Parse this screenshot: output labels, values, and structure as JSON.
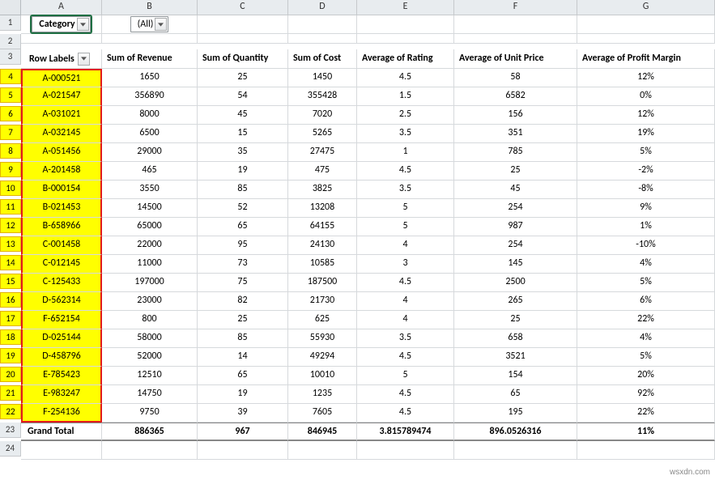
{
  "columns": [
    "A",
    "B",
    "C",
    "D",
    "E",
    "F",
    "G"
  ],
  "filter": {
    "label": "Category",
    "value": "(All)"
  },
  "headers": {
    "row_labels": "Row Labels",
    "cols": [
      "Sum of Revenue",
      "Sum of Quantity",
      "Sum of Cost",
      "Average of Rating",
      "Average of Unit Price",
      "Average of Profit Margin"
    ]
  },
  "rows": [
    {
      "n": "4",
      "id": "A-000521",
      "rev": "1650",
      "qty": "25",
      "cost": "1450",
      "rat": "4.5",
      "unit": "58",
      "pm": "12%"
    },
    {
      "n": "5",
      "id": "A-021547",
      "rev": "356890",
      "qty": "54",
      "cost": "355428",
      "rat": "1.5",
      "unit": "6582",
      "pm": "0%"
    },
    {
      "n": "6",
      "id": "A-031021",
      "rev": "8000",
      "qty": "45",
      "cost": "7020",
      "rat": "2.5",
      "unit": "156",
      "pm": "12%"
    },
    {
      "n": "7",
      "id": "A-032145",
      "rev": "6500",
      "qty": "15",
      "cost": "5265",
      "rat": "3.5",
      "unit": "351",
      "pm": "19%"
    },
    {
      "n": "8",
      "id": "A-051456",
      "rev": "29000",
      "qty": "35",
      "cost": "27475",
      "rat": "1",
      "unit": "785",
      "pm": "5%"
    },
    {
      "n": "9",
      "id": "A-201458",
      "rev": "465",
      "qty": "19",
      "cost": "475",
      "rat": "4.5",
      "unit": "25",
      "pm": "-2%"
    },
    {
      "n": "10",
      "id": "B-000154",
      "rev": "3550",
      "qty": "85",
      "cost": "3825",
      "rat": "3.5",
      "unit": "45",
      "pm": "-8%"
    },
    {
      "n": "11",
      "id": "B-021453",
      "rev": "14500",
      "qty": "52",
      "cost": "13208",
      "rat": "5",
      "unit": "254",
      "pm": "9%"
    },
    {
      "n": "12",
      "id": "B-658966",
      "rev": "65000",
      "qty": "65",
      "cost": "64155",
      "rat": "5",
      "unit": "987",
      "pm": "1%"
    },
    {
      "n": "13",
      "id": "C-001458",
      "rev": "22000",
      "qty": "95",
      "cost": "24130",
      "rat": "4",
      "unit": "254",
      "pm": "-10%"
    },
    {
      "n": "14",
      "id": "C-012145",
      "rev": "11000",
      "qty": "73",
      "cost": "10585",
      "rat": "3",
      "unit": "145",
      "pm": "4%"
    },
    {
      "n": "15",
      "id": "C-125433",
      "rev": "197000",
      "qty": "75",
      "cost": "187500",
      "rat": "4.5",
      "unit": "2500",
      "pm": "5%"
    },
    {
      "n": "16",
      "id": "D-562314",
      "rev": "23000",
      "qty": "82",
      "cost": "21730",
      "rat": "4",
      "unit": "265",
      "pm": "6%"
    },
    {
      "n": "17",
      "id": "F-652154",
      "rev": "800",
      "qty": "25",
      "cost": "625",
      "rat": "4",
      "unit": "25",
      "pm": "22%"
    },
    {
      "n": "18",
      "id": "D-025144",
      "rev": "58000",
      "qty": "85",
      "cost": "55930",
      "rat": "3.5",
      "unit": "658",
      "pm": "4%"
    },
    {
      "n": "19",
      "id": "D-458796",
      "rev": "52000",
      "qty": "14",
      "cost": "49294",
      "rat": "4.5",
      "unit": "3521",
      "pm": "5%"
    },
    {
      "n": "20",
      "id": "E-785423",
      "rev": "12510",
      "qty": "65",
      "cost": "10010",
      "rat": "5",
      "unit": "154",
      "pm": "20%"
    },
    {
      "n": "21",
      "id": "E-983247",
      "rev": "14750",
      "qty": "19",
      "cost": "1235",
      "rat": "4.5",
      "unit": "65",
      "pm": "92%"
    },
    {
      "n": "22",
      "id": "F-254136",
      "rev": "9750",
      "qty": "39",
      "cost": "7605",
      "rat": "4.5",
      "unit": "195",
      "pm": "22%"
    }
  ],
  "grand": {
    "n": "23",
    "label": "Grand Total",
    "rev": "886365",
    "qty": "967",
    "cost": "846945",
    "rat": "3.815789474",
    "unit": "896.0526316",
    "pm": "11%"
  },
  "extra_rows": [
    "24"
  ],
  "watermark": "wsxdn.com",
  "colors": {
    "highlight_bg": "#ffff00",
    "highlight_border": "#e21b1b",
    "grid": "#d6d9dc",
    "header_bg": "#e8ecef"
  }
}
